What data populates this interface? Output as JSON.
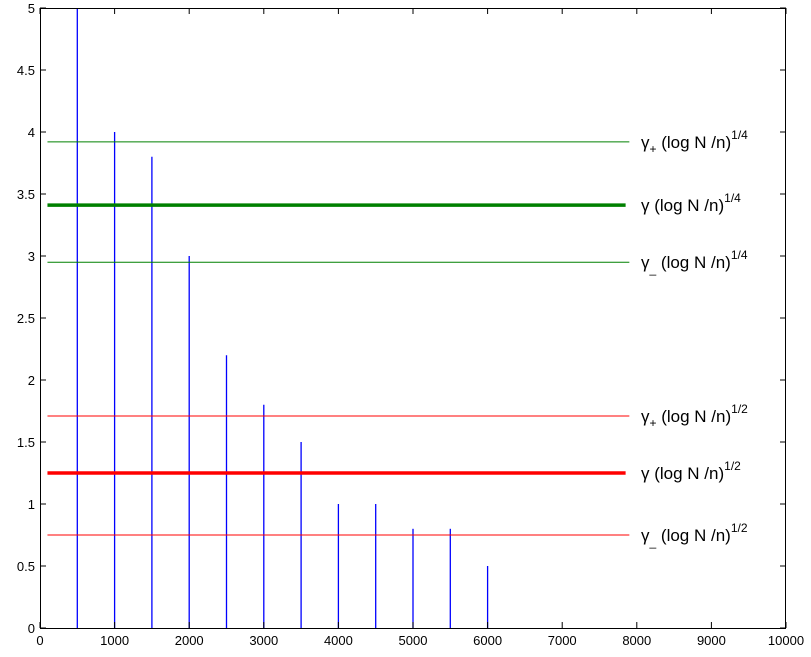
{
  "chart_data": {
    "type": "bar",
    "title": "",
    "xlabel": "",
    "ylabel": "",
    "xlim": [
      0,
      10000
    ],
    "ylim": [
      0,
      5
    ],
    "grid": false,
    "x_ticks": [
      0,
      1000,
      2000,
      3000,
      4000,
      5000,
      6000,
      7000,
      8000,
      9000,
      10000
    ],
    "y_ticks": [
      0,
      0.5,
      1,
      1.5,
      2,
      2.5,
      3,
      3.5,
      4,
      4.5,
      5
    ],
    "x_tick_labels": [
      "0",
      "1000",
      "2000",
      "3000",
      "4000",
      "5000",
      "6000",
      "7000",
      "8000",
      "9000",
      "10000"
    ],
    "y_tick_labels": [
      "0",
      "0.5",
      "1",
      "1.5",
      "2",
      "2.5",
      "3",
      "3.5",
      "4",
      "4.5",
      "5"
    ],
    "series": [
      {
        "color": "#0000ff",
        "x": [
          500,
          1000,
          1500,
          2000,
          2500,
          3000,
          3500,
          4000,
          4500,
          5000,
          5500,
          6000
        ],
        "values": [
          5,
          4,
          3.8,
          3.0,
          2.2,
          1.8,
          1.5,
          1.0,
          1.0,
          0.8,
          0.8,
          0.5
        ]
      }
    ],
    "reference_lines": [
      {
        "y": 3.92,
        "x_range": [
          100,
          7900
        ],
        "color": "#008000",
        "weight": "thin",
        "label_main": "γ",
        "label_sub": "+",
        "label_expr": " (log N /n)",
        "label_sup": "1/4"
      },
      {
        "y": 3.41,
        "x_range": [
          100,
          7850
        ],
        "color": "#008000",
        "weight": "thick",
        "label_main": "γ",
        "label_sub": "",
        "label_expr": " (log N /n)",
        "label_sup": "1/4"
      },
      {
        "y": 2.95,
        "x_range": [
          100,
          7900
        ],
        "color": "#008000",
        "weight": "thin",
        "label_main": "γ",
        "label_sub": "_",
        "label_expr": " (log N /n)",
        "label_sup": "1/4"
      },
      {
        "y": 1.71,
        "x_range": [
          100,
          7900
        ],
        "color": "#ff0000",
        "weight": "thin",
        "label_main": "γ",
        "label_sub": "+",
        "label_expr": " (log N /n)",
        "label_sup": "1/2"
      },
      {
        "y": 1.25,
        "x_range": [
          100,
          7850
        ],
        "color": "#ff0000",
        "weight": "thick",
        "label_main": "γ",
        "label_sub": "",
        "label_expr": " (log N /n)",
        "label_sup": "1/2"
      },
      {
        "y": 0.75,
        "x_range": [
          100,
          7900
        ],
        "color": "#ff0000",
        "weight": "thin",
        "label_main": "γ",
        "label_sub": "_",
        "label_expr": " (log N /n)",
        "label_sup": "1/2"
      }
    ]
  }
}
